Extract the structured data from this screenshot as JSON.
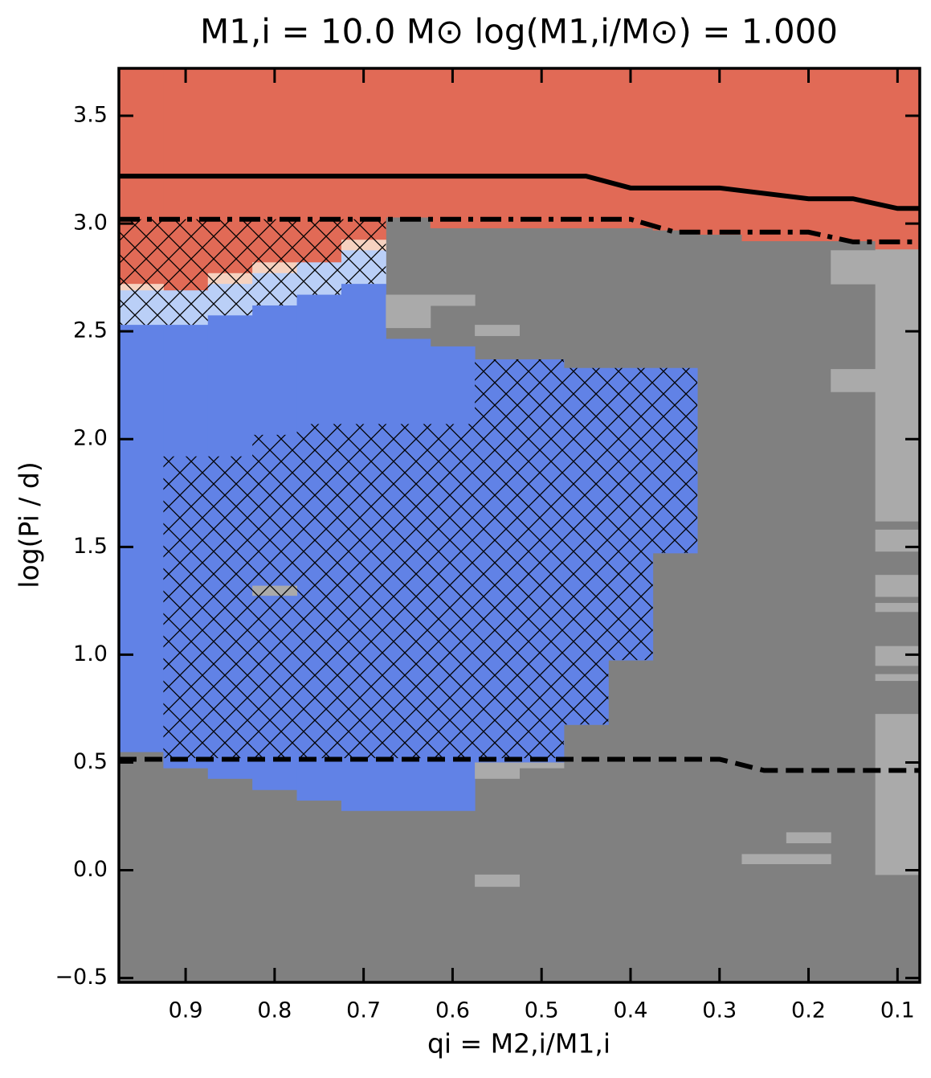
{
  "chart_data": {
    "type": "region_map",
    "title": "M1,i = 10.0 M⊙    log(M1,i/M⊙) = 1.000",
    "xlabel": "qi = M2,i/M1,i",
    "ylabel": "log(Pi / d)",
    "xlim": [
      0.975,
      0.075
    ],
    "ylim": [
      -0.52,
      3.72
    ],
    "xticks": [
      0.9,
      0.8,
      0.7,
      0.6,
      0.5,
      0.4,
      0.3,
      0.2,
      0.1
    ],
    "yticks": [
      {
        "value": -0.5,
        "label": "−0.5"
      },
      {
        "value": 0,
        "label": "0.0"
      },
      0.5,
      {
        "value": 1,
        "label": "1.0"
      },
      1.5,
      {
        "value": 2,
        "label": "2.0"
      },
      2.5,
      {
        "value": 3,
        "label": "3.0"
      },
      3.5
    ],
    "background_color": "#808080",
    "regions": [
      {
        "color": "#e16a56",
        "rects": [
          [
            0.975,
            0.925,
            2.72,
            3.72
          ],
          [
            0.925,
            0.875,
            2.69,
            3.72
          ],
          [
            0.875,
            0.825,
            2.77,
            3.72
          ],
          [
            0.825,
            0.775,
            2.82,
            3.72
          ],
          [
            0.775,
            0.725,
            2.82,
            3.72
          ],
          [
            0.725,
            0.675,
            2.925,
            3.72
          ],
          [
            0.675,
            0.625,
            3.03,
            3.72
          ],
          [
            0.625,
            0.525,
            2.98,
            3.72
          ],
          [
            0.525,
            0.375,
            2.98,
            3.72
          ],
          [
            0.375,
            0.325,
            2.97,
            3.72
          ],
          [
            0.325,
            0.275,
            2.95,
            3.72
          ],
          [
            0.275,
            0.125,
            2.92,
            3.72
          ],
          [
            0.125,
            0.075,
            2.88,
            3.72
          ]
        ]
      },
      {
        "color": "#f6d2c0",
        "rects": [
          [
            0.975,
            0.925,
            2.69,
            2.72
          ],
          [
            0.875,
            0.825,
            2.72,
            2.77
          ],
          [
            0.825,
            0.775,
            2.77,
            2.82
          ],
          [
            0.725,
            0.675,
            2.876,
            2.925
          ]
        ]
      },
      {
        "color": "#bacff7",
        "rects": [
          [
            0.975,
            0.925,
            2.53,
            2.69
          ],
          [
            0.925,
            0.875,
            2.53,
            2.69
          ],
          [
            0.875,
            0.825,
            2.574,
            2.72
          ],
          [
            0.825,
            0.775,
            2.62,
            2.77
          ],
          [
            0.775,
            0.725,
            2.67,
            2.82
          ],
          [
            0.725,
            0.675,
            2.72,
            2.876
          ]
        ]
      },
      {
        "color": "#6182e6",
        "rects": [
          [
            0.975,
            0.925,
            0.55,
            2.53
          ],
          [
            0.925,
            0.875,
            0.475,
            2.53
          ],
          [
            0.875,
            0.825,
            0.426,
            2.574
          ],
          [
            0.825,
            0.775,
            0.374,
            2.62
          ],
          [
            0.775,
            0.725,
            0.325,
            2.67
          ],
          [
            0.725,
            0.675,
            0.277,
            2.72
          ],
          [
            0.675,
            0.625,
            0.277,
            2.465
          ],
          [
            0.625,
            0.575,
            0.277,
            2.43
          ],
          [
            0.575,
            0.525,
            0.5,
            2.37
          ],
          [
            0.525,
            0.475,
            0.5,
            2.37
          ],
          [
            0.475,
            0.425,
            0.676,
            2.33
          ],
          [
            0.425,
            0.375,
            0.975,
            2.33
          ],
          [
            0.375,
            0.325,
            1.472,
            2.33
          ]
        ]
      },
      {
        "color": "#aaaaaa",
        "rects": [
          [
            0.825,
            0.775,
            1.275,
            1.32
          ],
          [
            0.675,
            0.625,
            2.517,
            2.67
          ],
          [
            0.625,
            0.575,
            2.62,
            2.67
          ],
          [
            0.575,
            0.525,
            2.48,
            2.53
          ],
          [
            0.575,
            0.525,
            0.426,
            0.5
          ],
          [
            0.575,
            0.525,
            -0.075,
            -0.02
          ],
          [
            0.525,
            0.475,
            0.475,
            0.5
          ],
          [
            0.275,
            0.175,
            0.03,
            0.075
          ],
          [
            0.225,
            0.175,
            0.127,
            0.176
          ],
          [
            0.175,
            0.125,
            2.22,
            2.325
          ],
          [
            0.175,
            0.125,
            2.72,
            2.876
          ],
          [
            0.125,
            0.075,
            -0.02,
            0.725
          ],
          [
            0.125,
            0.075,
            0.88,
            0.91
          ],
          [
            0.125,
            0.075,
            0.95,
            1.04
          ],
          [
            0.125,
            0.075,
            1.2,
            1.24
          ],
          [
            0.125,
            0.075,
            1.27,
            1.37
          ],
          [
            0.125,
            0.075,
            1.48,
            1.58
          ],
          [
            0.125,
            0.075,
            1.62,
            2.88
          ]
        ]
      }
    ],
    "hatch_rects": [
      [
        0.975,
        0.925,
        2.53,
        3.02
      ],
      [
        0.925,
        0.875,
        2.53,
        3.02
      ],
      [
        0.875,
        0.825,
        2.574,
        3.02
      ],
      [
        0.825,
        0.775,
        2.62,
        3.02
      ],
      [
        0.775,
        0.725,
        2.67,
        3.02
      ],
      [
        0.725,
        0.675,
        2.72,
        3.02
      ],
      [
        0.925,
        0.875,
        0.52,
        1.92
      ],
      [
        0.875,
        0.825,
        0.52,
        1.92
      ],
      [
        0.825,
        0.775,
        0.52,
        2.02
      ],
      [
        0.775,
        0.575,
        0.52,
        2.07
      ],
      [
        0.575,
        0.475,
        0.52,
        2.37
      ],
      [
        0.475,
        0.425,
        0.676,
        2.33
      ],
      [
        0.425,
        0.375,
        0.975,
        2.33
      ],
      [
        0.375,
        0.325,
        1.472,
        2.33
      ]
    ],
    "lines": [
      {
        "style": "solid",
        "x": [
          0.975,
          0.45,
          0.4,
          0.3,
          0.2,
          0.15,
          0.1,
          0.075
        ],
        "y": [
          3.22,
          3.22,
          3.165,
          3.165,
          3.115,
          3.115,
          3.07,
          3.07
        ]
      },
      {
        "style": "dashdot",
        "x": [
          0.975,
          0.4,
          0.35,
          0.2,
          0.15,
          0.075
        ],
        "y": [
          3.02,
          3.02,
          2.96,
          2.96,
          2.915,
          2.915
        ]
      },
      {
        "style": "dashed",
        "x": [
          0.975,
          0.3,
          0.25,
          0.075
        ],
        "y": [
          0.515,
          0.515,
          0.463,
          0.463
        ]
      }
    ]
  }
}
